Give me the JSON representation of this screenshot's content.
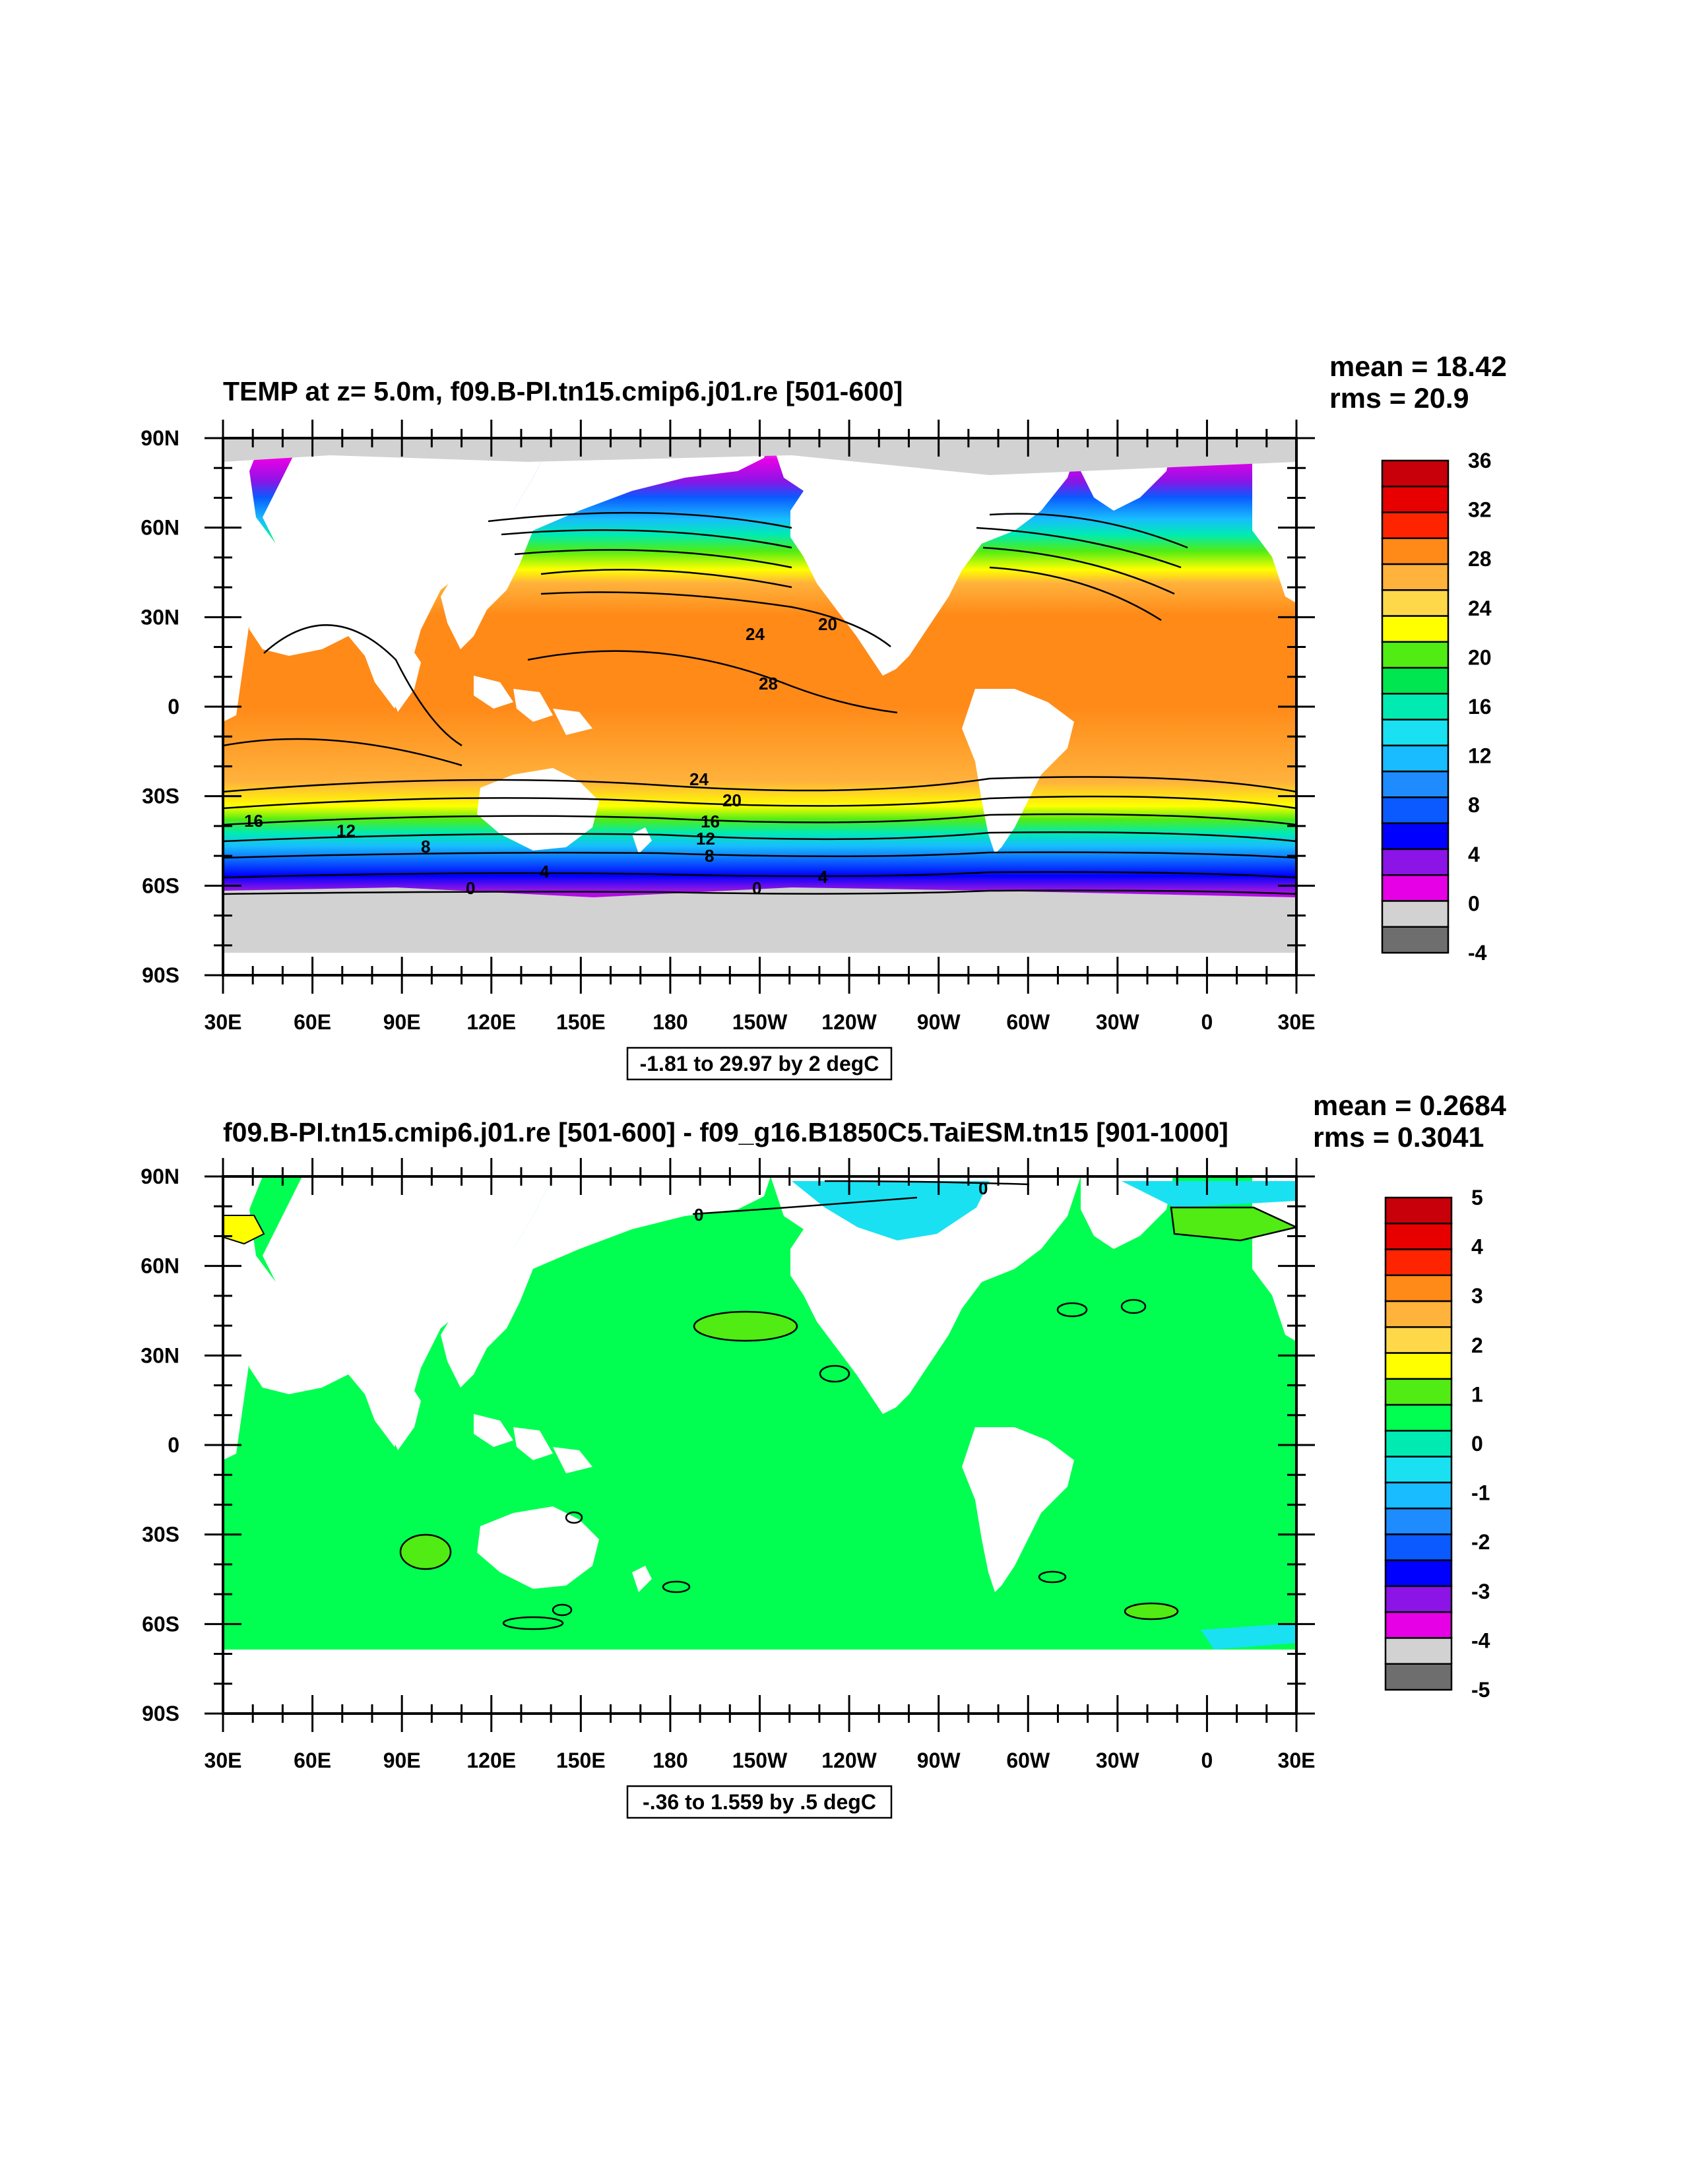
{
  "panels": [
    {
      "title": "TEMP at z=   5.0m, f09.B-PI.tn15.cmip6.j01.re [501-600]",
      "stats": {
        "mean": "mean = 18.42",
        "rms": "rms = 20.9"
      },
      "contour_info": "-1.81 to 29.97 by 2 degC",
      "colorbar_labels": [
        "36",
        "32",
        "28",
        "24",
        "20",
        "16",
        "12",
        "8",
        "4",
        "0",
        "-4"
      ],
      "colorbar_colors": [
        "#c8000a",
        "#e80000",
        "#ff2400",
        "#ff8a18",
        "#ffb23c",
        "#ffd84a",
        "#ffff00",
        "#50ec14",
        "#00e650",
        "#00ebb2",
        "#19e1f2",
        "#18bcff",
        "#1e8cff",
        "#0a5aff",
        "#0000ff",
        "#8c14e6",
        "#e600e6",
        "#d2d2d2",
        "#6e6e6e"
      ],
      "contour_labels": [
        "24",
        "20",
        "28",
        "24",
        "20",
        "16",
        "12",
        "8",
        "16",
        "12",
        "8",
        "4",
        "4",
        "0",
        "0"
      ]
    },
    {
      "title": "f09.B-PI.tn15.cmip6.j01.re [501-600] - f09_g16.B1850C5.TaiESM.tn15 [901-1000]",
      "stats": {
        "mean": "mean = 0.2684",
        "rms": "rms = 0.3041"
      },
      "contour_info": "-.36 to 1.559 by .5 degC",
      "colorbar_labels": [
        "5",
        "4",
        "3",
        "2",
        "1",
        "0",
        "-1",
        "-2",
        "-3",
        "-4",
        "-5"
      ],
      "colorbar_colors": [
        "#c8000a",
        "#e80000",
        "#ff2400",
        "#ff8a18",
        "#ffb23c",
        "#ffd84a",
        "#ffff00",
        "#50ec14",
        "#00ff50",
        "#00ebb2",
        "#19e1f2",
        "#18bcff",
        "#1e8cff",
        "#0a5aff",
        "#0000ff",
        "#8c14e6",
        "#e600e6",
        "#d2d2d2",
        "#6e6e6e"
      ],
      "contour_labels": [
        "0",
        "0"
      ]
    }
  ],
  "axes": {
    "lat_labels": [
      "90N",
      "60N",
      "30N",
      "0",
      "30S",
      "60S",
      "90S"
    ],
    "lon_labels": [
      "30E",
      "60E",
      "90E",
      "120E",
      "150E",
      "180",
      "150W",
      "120W",
      "90W",
      "60W",
      "30W",
      "0",
      "30E"
    ]
  },
  "colors": {
    "land": "#ffffff",
    "ice": "#d2d2d2",
    "diff_ocean": "#00ff50"
  }
}
